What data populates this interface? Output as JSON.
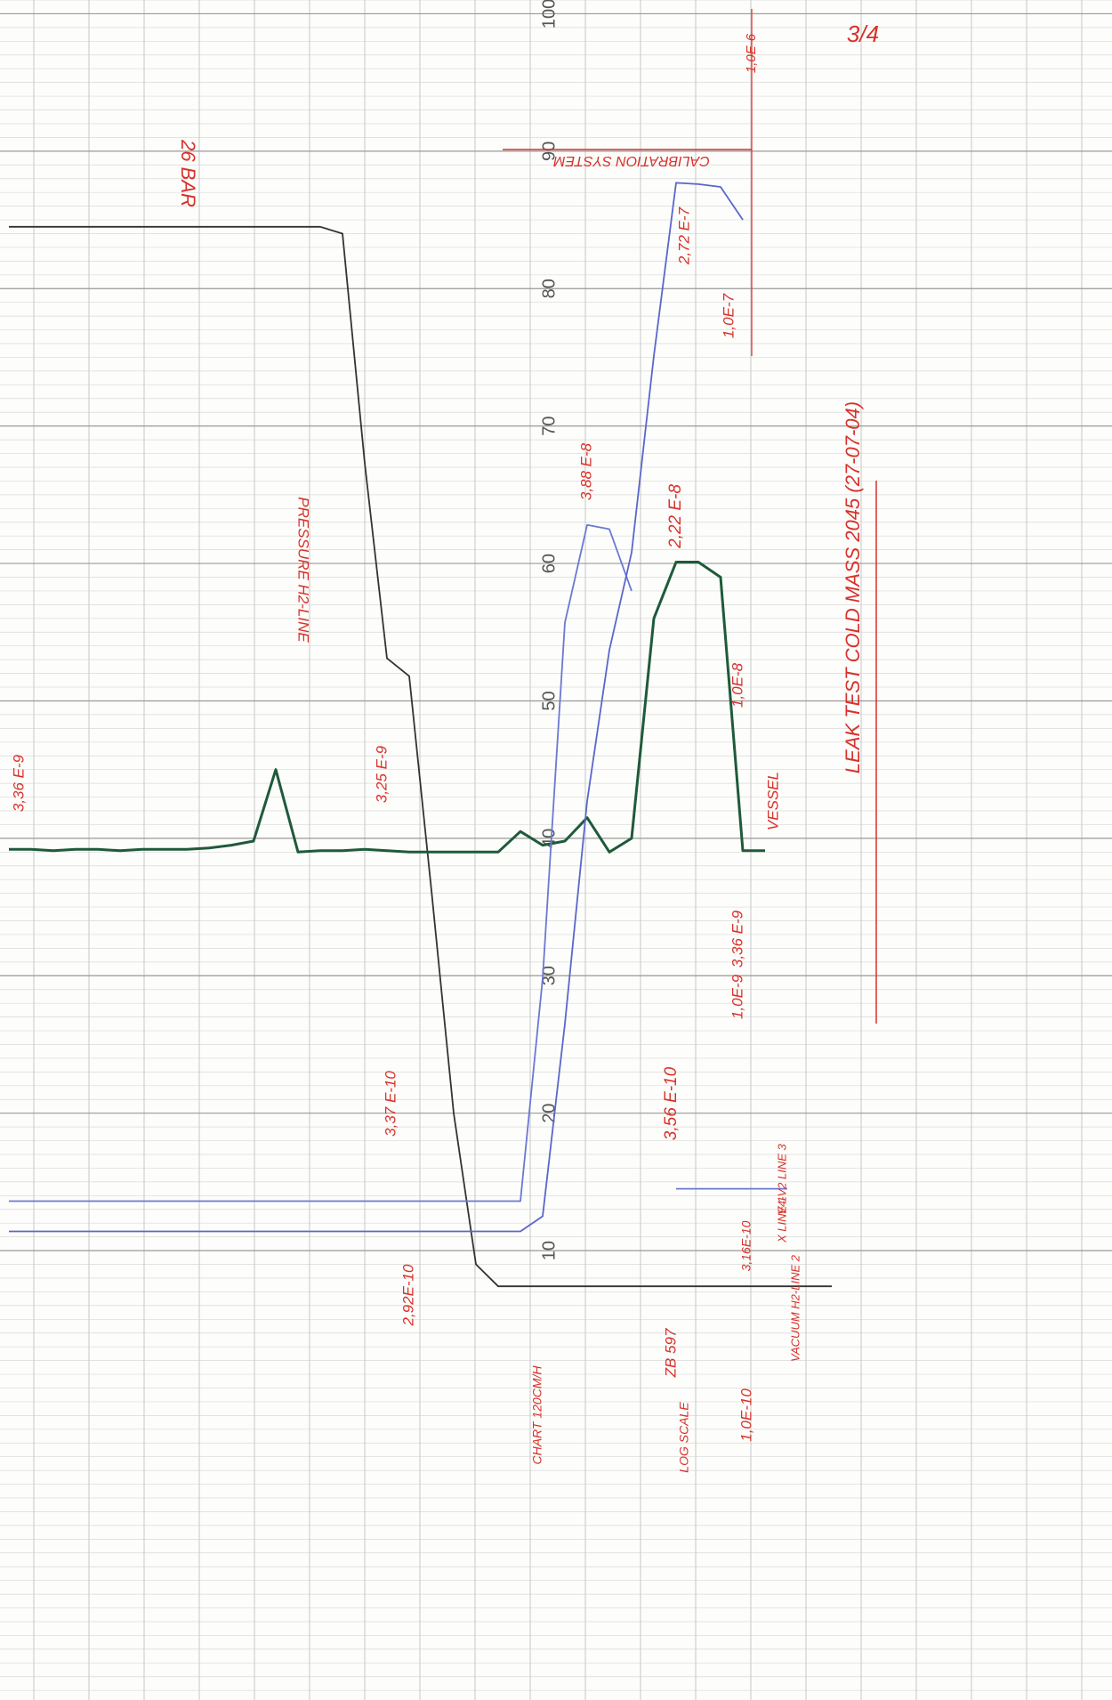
{
  "chart_data": {
    "type": "line",
    "ylim": [
      -22.7,
      101
    ],
    "yticks": [
      10,
      20,
      30,
      40,
      50,
      60,
      70,
      80,
      90,
      100
    ],
    "grid": true,
    "categories": [
      null,
      null,
      null,
      null,
      null,
      null,
      null,
      null,
      null,
      null,
      null,
      null,
      null,
      null,
      null,
      null,
      null,
      null,
      null,
      null,
      null,
      null,
      null,
      null,
      null,
      null,
      null,
      null,
      null,
      null,
      null,
      null,
      null,
      null,
      null,
      null,
      null,
      null,
      null,
      null,
      null
    ],
    "series": [
      {
        "name": "PRESSURE H2-LINE",
        "color": "#333333",
        "values": [
          84.5,
          84.5,
          84.5,
          84.5,
          84.5,
          84.5,
          84.5,
          84.5,
          84.5,
          84.5,
          84.5,
          84.5,
          84.5,
          84.5,
          84.5,
          84,
          67.3,
          53.1,
          51.8,
          36.2,
          20.0,
          9.0,
          7.4,
          7.4,
          7.4,
          7.4,
          7.4,
          7.4,
          7.4,
          7.4,
          7.4,
          7.4,
          7.4,
          7.4,
          7.4,
          7.4,
          7.4,
          7.4,
          null,
          null,
          null
        ]
      },
      {
        "name": "VESSEL",
        "color": "#1f5a3a",
        "values": [
          39.2,
          39.2,
          39.1,
          39.2,
          39.2,
          39.1,
          39.2,
          39.2,
          39.2,
          39.3,
          39.5,
          39.8,
          45,
          39.0,
          39.1,
          39.1,
          39.2,
          39.1,
          39.0,
          39.0,
          39.0,
          39.0,
          39.0,
          40.5,
          39.5,
          39.8,
          41.5,
          39.0,
          40,
          56,
          60.1,
          60.1,
          59,
          39.1,
          39.1,
          null,
          null,
          null,
          null,
          null,
          null
        ]
      },
      {
        "name": "V4-V2 LINE 3",
        "color": "#6b78d4",
        "values": [
          13.6,
          13.6,
          13.6,
          13.6,
          13.6,
          13.6,
          13.6,
          13.6,
          13.6,
          13.6,
          13.6,
          13.6,
          13.6,
          13.6,
          13.6,
          13.6,
          13.6,
          13.6,
          13.6,
          13.6,
          13.6,
          13.6,
          13.6,
          13.6,
          29.8,
          55.7,
          62.8,
          62.5,
          58,
          null,
          14.5,
          14.5,
          14.5,
          14.5,
          14.5,
          14.5,
          null,
          null,
          null,
          null,
          null
        ]
      },
      {
        "name": "X LINE 1",
        "color": "#5a66cc",
        "values": [
          11.4,
          11.4,
          11.4,
          11.4,
          11.4,
          11.4,
          11.4,
          11.4,
          11.4,
          11.4,
          11.4,
          11.4,
          11.4,
          11.4,
          11.4,
          11.4,
          11.4,
          11.4,
          11.4,
          11.4,
          11.4,
          11.4,
          11.4,
          11.4,
          12.5,
          26.5,
          42.7,
          53.7,
          60.8,
          75.1,
          87.7,
          87.6,
          87.4,
          85,
          null,
          12.9,
          null,
          null,
          null,
          null,
          null
        ]
      }
    ],
    "annotations": [
      "26 BAR",
      "PRESSURE H2-LINE",
      "3,36 E-9",
      "3,25 E-9",
      "3,88 E-8",
      "2,72 E-7",
      "1,0E-7",
      "2,22 E-8",
      "1,0E-8",
      "3,36 E-9",
      "1,0E-9",
      "VESSEL",
      "3,37 E-10",
      "3,56 E-10",
      "2,92E-10",
      "3,16E-10",
      "1,0E-10",
      "1,0E-6",
      "CALIBRATION SYSTEM",
      "CHART 120CM/H",
      "LOG SCALE",
      "ZB 597",
      "V4-V2 LINE 3",
      "X LINE 1",
      "VACUUM H2-LINE 2",
      "LEAK TEST COLD MASS 2045 (27-07-04)",
      "3/4"
    ]
  }
}
